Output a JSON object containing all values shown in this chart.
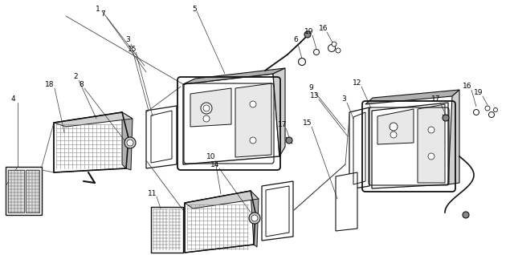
{
  "bg_color": "#ffffff",
  "lc": "#111111",
  "figsize": [
    6.4,
    3.18
  ],
  "dpi": 100,
  "gray_light": "#d0d0d0",
  "gray_mid": "#b0b0b0",
  "gray_dark": "#888888",
  "white": "#ffffff",
  "black": "#111111"
}
